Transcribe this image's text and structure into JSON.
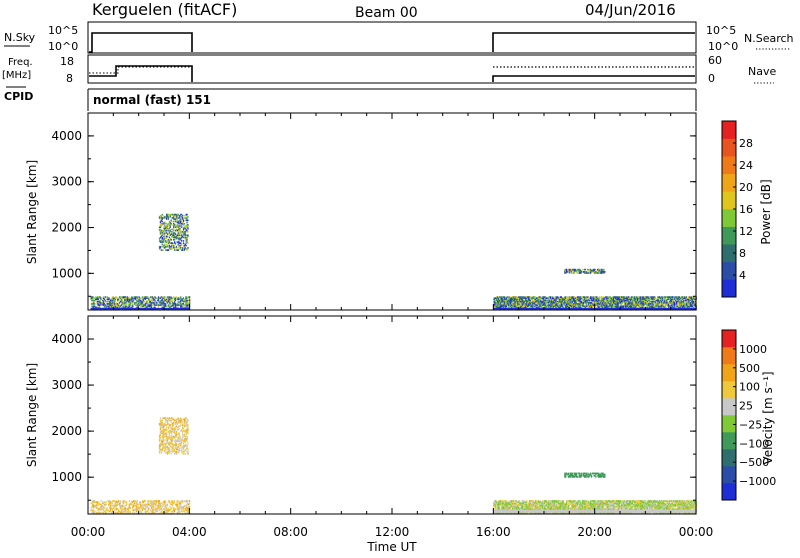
{
  "header": {
    "site": "Kerguelen (fitACF)",
    "beam": "Beam 00",
    "date": "04/Jun/2016"
  },
  "panels": {
    "nsky": {
      "label": "N.Sky",
      "ticks": [
        "10^5",
        "10^0"
      ],
      "right_ticks": [
        "10^5",
        "10^0"
      ],
      "right_label": "N.Search"
    },
    "freq": {
      "label_top": "Freq.",
      "label_bottom": "[MHz]",
      "ticks": [
        "18",
        "8"
      ],
      "right_ticks": [
        "60",
        "0"
      ],
      "right_label": "Nave"
    },
    "cpid": {
      "label": "CPID",
      "program": "normal (fast) 151"
    }
  },
  "chart_data": [
    {
      "type": "scatter",
      "name": "power",
      "ylabel": "Slant Range [km]",
      "ylim": [
        200,
        4500
      ],
      "yticks": [
        "4000",
        "3000",
        "2000",
        "1000"
      ],
      "xlim": [
        0,
        24
      ],
      "colorbar": {
        "label": "Power [dB]",
        "ticks": [
          "28",
          "24",
          "20",
          "16",
          "12",
          "8",
          "4"
        ],
        "colors": [
          "#1f2dd6",
          "#2a4ea8",
          "#2e6e6e",
          "#3f9a5a",
          "#7fc936",
          "#e0c51d",
          "#f0a418",
          "#ef7a17",
          "#e85420",
          "#e52121"
        ]
      },
      "regions": [
        {
          "t0": 0.1,
          "t1": 4.0,
          "r0": 200,
          "r1": 500,
          "density": 0.55
        },
        {
          "t0": 2.8,
          "t1": 3.95,
          "r0": 1500,
          "r1": 2300,
          "density": 0.45
        },
        {
          "t0": 16.0,
          "t1": 24.0,
          "r0": 200,
          "r1": 500,
          "density": 0.75
        },
        {
          "t0": 18.8,
          "t1": 20.4,
          "r0": 1000,
          "r1": 1100,
          "density": 0.6
        }
      ]
    },
    {
      "type": "scatter",
      "name": "velocity",
      "ylabel": "Slant Range [km]",
      "ylim": [
        200,
        4500
      ],
      "yticks": [
        "4000",
        "3000",
        "2000",
        "1000"
      ],
      "xlim": [
        0,
        24
      ],
      "xticks": [
        "00:00",
        "04:00",
        "08:00",
        "12:00",
        "16:00",
        "20:00",
        "00:00"
      ],
      "xlabel": "Time UT",
      "colorbar": {
        "label": "Velocity [m s⁻¹]",
        "ticks": [
          "1000",
          "500",
          "100",
          "25",
          "−25",
          "−100",
          "−500",
          "−1000"
        ],
        "colors": [
          "#1f2dd6",
          "#2a4ea8",
          "#2e6e6e",
          "#3f9a5a",
          "#7fc936",
          "#c8c8c8",
          "#f0c83c",
          "#f0a418",
          "#ef7a17",
          "#e52121"
        ]
      },
      "regions": [
        {
          "t0": 0.1,
          "t1": 4.0,
          "r0": 200,
          "r1": 500,
          "density": 0.45
        },
        {
          "t0": 2.8,
          "t1": 3.95,
          "r0": 1500,
          "r1": 2300,
          "density": 0.4
        },
        {
          "t0": 16.0,
          "t1": 24.0,
          "r0": 200,
          "r1": 500,
          "density": 0.75
        },
        {
          "t0": 18.8,
          "t1": 20.4,
          "r0": 1000,
          "r1": 1100,
          "density": 0.6
        }
      ]
    }
  ]
}
